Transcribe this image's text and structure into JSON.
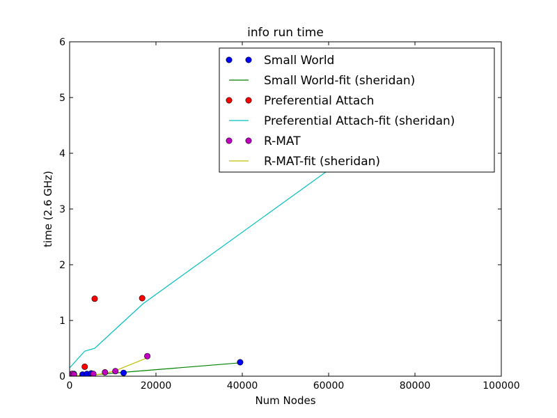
{
  "chart_data": {
    "type": "scatter",
    "title": "info run time",
    "xlabel": "Num Nodes",
    "ylabel": "time (2.6 GHz)",
    "xlim": [
      0,
      100000
    ],
    "ylim": [
      0,
      6
    ],
    "xticks": [
      0,
      20000,
      40000,
      60000,
      80000,
      100000
    ],
    "yticks": [
      0,
      1,
      2,
      3,
      4,
      5,
      6
    ],
    "xtick_labels": [
      "0",
      "20000",
      "40000",
      "60000",
      "80000",
      "100000"
    ],
    "ytick_labels": [
      "0",
      "1",
      "2",
      "3",
      "4",
      "5",
      "6"
    ],
    "grid": false,
    "legend_position": "top-right",
    "series": [
      {
        "name": "Small World",
        "kind": "points",
        "color": "#0000ff",
        "points": [
          [
            100,
            0.02
          ],
          [
            500,
            0.03
          ],
          [
            1000,
            0.04
          ],
          [
            3000,
            0.03
          ],
          [
            4000,
            0.04
          ],
          [
            5000,
            0.05
          ],
          [
            12500,
            0.06
          ],
          [
            39500,
            0.25
          ]
        ]
      },
      {
        "name": "Small World-fit (sheridan)",
        "kind": "line",
        "color": "#008000",
        "points": [
          [
            100,
            0.0
          ],
          [
            1000,
            0.0
          ],
          [
            3000,
            0.01
          ],
          [
            5000,
            0.02
          ],
          [
            12500,
            0.07
          ],
          [
            39500,
            0.24
          ]
        ]
      },
      {
        "name": "Preferential Attach",
        "kind": "points",
        "color": "#ff0000",
        "points": [
          [
            300,
            0.03
          ],
          [
            600,
            0.04
          ],
          [
            3500,
            0.17
          ],
          [
            5800,
            1.39
          ],
          [
            16800,
            1.4
          ]
        ]
      },
      {
        "name": "Preferential Attach-fit (sheridan)",
        "kind": "line",
        "color": "#00bfbf",
        "points": [
          [
            0,
            0.15
          ],
          [
            3500,
            0.45
          ],
          [
            5800,
            0.5
          ],
          [
            17000,
            1.3
          ],
          [
            60000,
            3.7
          ],
          [
            61000,
            3.75
          ]
        ]
      },
      {
        "name": "R-MAT",
        "kind": "points",
        "color": "#bf00bf",
        "points": [
          [
            200,
            0.03
          ],
          [
            600,
            0.04
          ],
          [
            1000,
            0.03
          ],
          [
            5500,
            0.04
          ],
          [
            8200,
            0.07
          ],
          [
            10600,
            0.09
          ],
          [
            18000,
            0.36
          ]
        ]
      },
      {
        "name": "R-MAT-fit (sheridan)",
        "kind": "line",
        "color": "#bfbf00",
        "points": [
          [
            200,
            0.0
          ],
          [
            1000,
            0.01
          ],
          [
            5500,
            0.02
          ],
          [
            8200,
            0.05
          ],
          [
            10600,
            0.1
          ],
          [
            18000,
            0.33
          ]
        ]
      }
    ]
  }
}
